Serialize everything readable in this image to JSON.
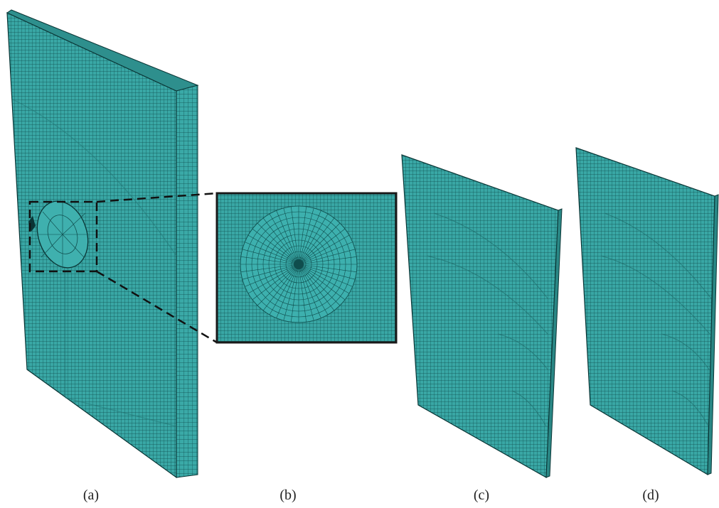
{
  "panels": [
    {
      "id": "a",
      "caption": "(a)",
      "description_hidden": true
    },
    {
      "id": "b",
      "caption": "(b)"
    },
    {
      "id": "c",
      "caption": "(c)"
    },
    {
      "id": "d",
      "caption": "(d)"
    }
  ],
  "colors": {
    "mesh_face": "#39a7a5",
    "mesh_line": "#0f4d4d",
    "mesh_edge": "#0a3535",
    "zoom_box": "#1a1a1a",
    "background": "#ffffff"
  }
}
